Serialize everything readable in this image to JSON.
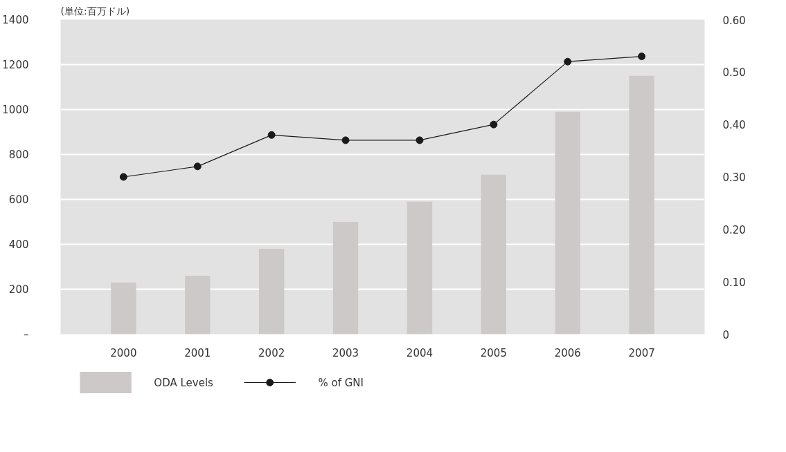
{
  "chart_data": {
    "type": "bar",
    "ylabel": "(単位:百万ドル)",
    "categories": [
      "2000",
      "2001",
      "2002",
      "2003",
      "2004",
      "2005",
      "2006",
      "2007"
    ],
    "series": [
      {
        "name": "ODA Levels",
        "color": "#cdc9c8",
        "values": [
          230,
          260,
          380,
          500,
          590,
          710,
          990,
          1150
        ]
      },
      {
        "name": "% of GNI",
        "type": "line",
        "axis": "y2",
        "color": "#1a1a1a",
        "marker": "circle",
        "values": [
          0.3,
          0.32,
          0.38,
          0.37,
          0.37,
          0.4,
          0.52,
          0.53
        ]
      }
    ],
    "ylim": [
      0,
      1400
    ],
    "yticks": [
      {
        "value": 0,
        "label": "–"
      },
      200,
      400,
      600,
      800,
      1000,
      1200,
      1400
    ],
    "y2lim": [
      0,
      0.6
    ],
    "y2ticks": [
      0,
      {
        "value": 0.1,
        "label": "0.10"
      },
      {
        "value": 0.2,
        "label": "0.20"
      },
      {
        "value": 0.3,
        "label": "0.30"
      },
      {
        "value": 0.4,
        "label": "0.40"
      },
      {
        "value": 0.5,
        "label": "0.50"
      },
      {
        "value": 0.6,
        "label": "0.60"
      }
    ],
    "grid": "y",
    "legend": "bottom left"
  }
}
